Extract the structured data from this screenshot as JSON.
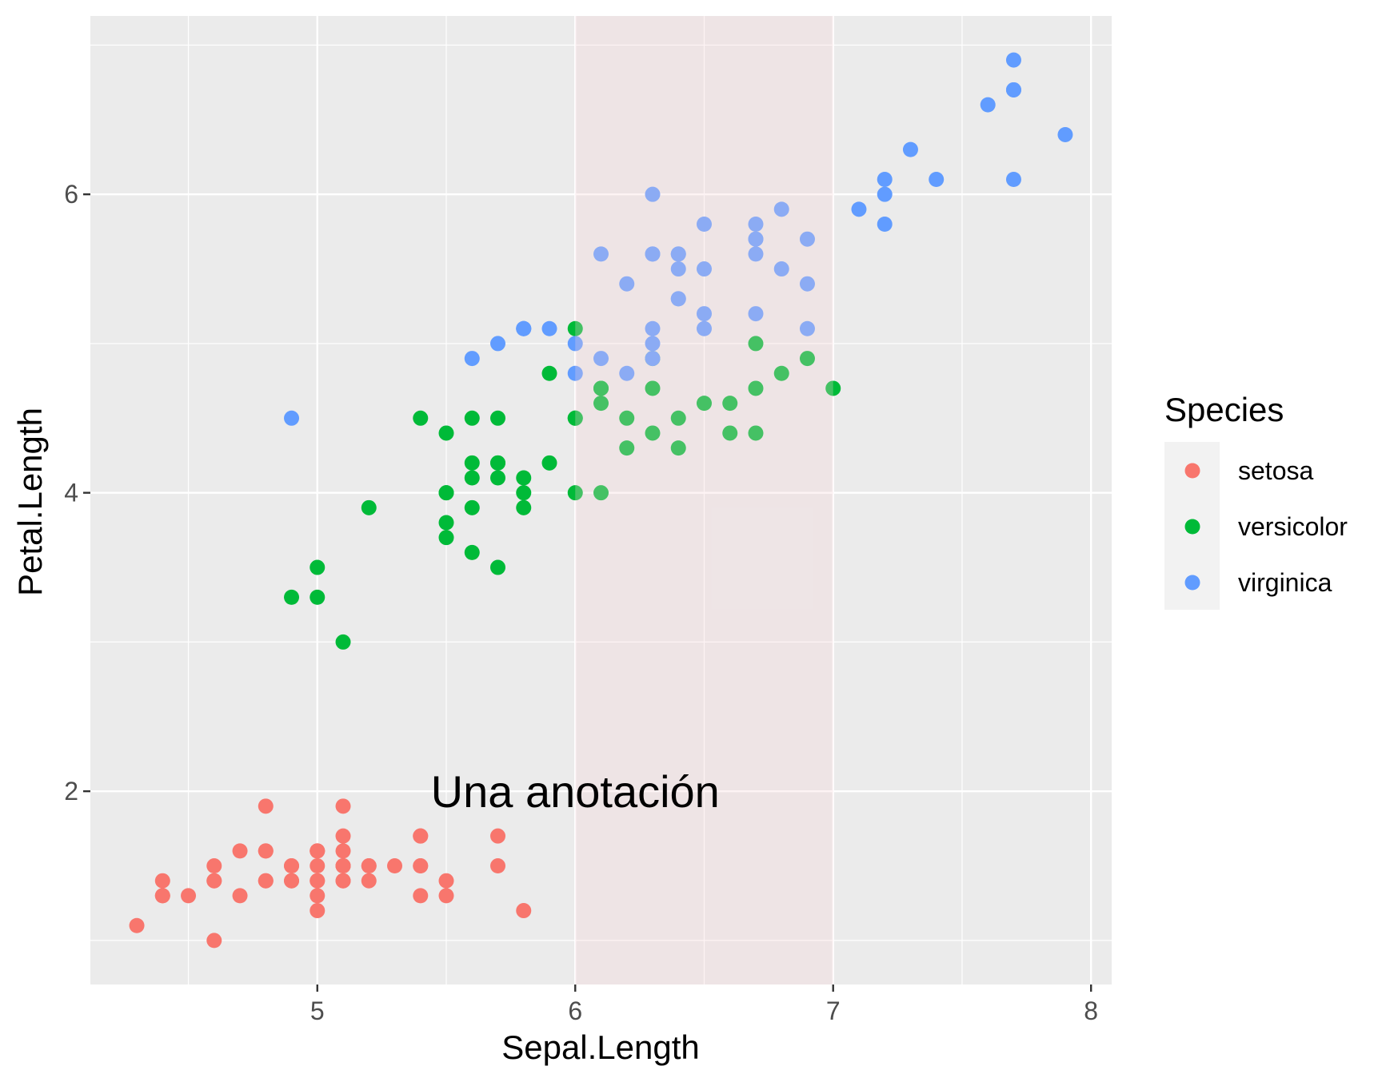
{
  "chart_data": {
    "type": "scatter",
    "xlabel": "Sepal.Length",
    "ylabel": "Petal.Length",
    "xlim": [
      4.12,
      8.08
    ],
    "ylim": [
      0.705,
      7.195
    ],
    "x_ticks": [
      5,
      6,
      7,
      8
    ],
    "y_ticks": [
      2,
      4,
      6
    ],
    "grid": true,
    "legend": {
      "title": "Species",
      "position": "right",
      "entries": [
        "setosa",
        "versicolor",
        "virginica"
      ]
    },
    "annotation": {
      "text": "Una anotación",
      "x": 6,
      "y": 2
    },
    "highlight_rect": {
      "xmin": 6,
      "xmax": 7,
      "color": "#f7d4d8"
    },
    "colors": {
      "setosa": "#F8766D",
      "versicolor": "#00BA38",
      "virginica": "#619CFF",
      "panel": "#EBEBEB",
      "grid": "#FFFFFF"
    },
    "series": [
      {
        "name": "setosa",
        "x": [
          5.1,
          4.9,
          4.7,
          4.6,
          5.0,
          5.4,
          4.6,
          5.0,
          4.4,
          4.9,
          5.4,
          4.8,
          4.8,
          4.3,
          5.8,
          5.7,
          5.4,
          5.1,
          5.7,
          5.1,
          5.4,
          5.1,
          4.6,
          5.1,
          4.8,
          5.0,
          5.0,
          5.2,
          5.2,
          4.7,
          4.8,
          5.4,
          5.2,
          5.5,
          4.9,
          5.0,
          5.5,
          4.9,
          4.4,
          5.1,
          5.0,
          4.5,
          4.4,
          5.0,
          5.1,
          4.8,
          5.1,
          4.6,
          5.3,
          5.0
        ],
        "y": [
          1.4,
          1.4,
          1.3,
          1.5,
          1.4,
          1.7,
          1.4,
          1.5,
          1.4,
          1.5,
          1.5,
          1.6,
          1.4,
          1.1,
          1.2,
          1.5,
          1.3,
          1.4,
          1.7,
          1.5,
          1.7,
          1.5,
          1.0,
          1.7,
          1.9,
          1.6,
          1.6,
          1.5,
          1.4,
          1.6,
          1.6,
          1.5,
          1.5,
          1.4,
          1.5,
          1.2,
          1.3,
          1.4,
          1.3,
          1.5,
          1.3,
          1.3,
          1.3,
          1.6,
          1.9,
          1.4,
          1.6,
          1.4,
          1.5,
          1.4
        ]
      },
      {
        "name": "versicolor",
        "x": [
          7.0,
          6.4,
          6.9,
          5.5,
          6.5,
          5.7,
          6.3,
          4.9,
          6.6,
          5.2,
          5.0,
          5.9,
          6.0,
          6.1,
          5.6,
          6.7,
          5.6,
          5.8,
          6.2,
          5.6,
          5.9,
          6.1,
          6.3,
          6.1,
          6.4,
          6.6,
          6.8,
          6.7,
          6.0,
          5.7,
          5.5,
          5.5,
          5.8,
          6.0,
          5.4,
          6.0,
          6.7,
          6.3,
          5.6,
          5.5,
          5.5,
          6.1,
          5.8,
          5.0,
          5.6,
          5.7,
          5.7,
          6.2,
          5.1,
          5.7
        ],
        "y": [
          4.7,
          4.5,
          4.9,
          4.0,
          4.6,
          4.5,
          4.7,
          3.3,
          4.6,
          3.9,
          3.5,
          4.2,
          4.0,
          4.7,
          3.6,
          4.4,
          4.5,
          4.1,
          4.5,
          3.9,
          4.8,
          4.0,
          4.9,
          4.7,
          4.3,
          4.4,
          4.8,
          5.0,
          4.5,
          3.5,
          3.8,
          3.7,
          3.9,
          5.1,
          4.5,
          4.5,
          4.7,
          4.4,
          4.1,
          4.0,
          4.4,
          4.6,
          4.0,
          3.3,
          4.2,
          4.2,
          4.2,
          4.3,
          3.0,
          4.1
        ]
      },
      {
        "name": "virginica",
        "x": [
          6.3,
          5.8,
          7.1,
          6.3,
          6.5,
          7.6,
          4.9,
          7.3,
          6.7,
          7.2,
          6.5,
          6.4,
          6.8,
          5.7,
          5.8,
          6.4,
          6.5,
          7.7,
          7.7,
          6.0,
          6.9,
          5.6,
          7.7,
          6.3,
          6.7,
          7.2,
          6.2,
          6.1,
          6.4,
          7.2,
          7.4,
          7.9,
          6.4,
          6.3,
          6.1,
          7.7,
          6.3,
          6.4,
          6.0,
          6.9,
          6.7,
          6.9,
          5.8,
          6.8,
          6.7,
          6.7,
          6.3,
          6.5,
          6.2,
          5.9
        ],
        "y": [
          6.0,
          5.1,
          5.9,
          5.6,
          5.8,
          6.6,
          4.5,
          6.3,
          5.8,
          6.1,
          5.1,
          5.3,
          5.5,
          5.0,
          5.1,
          5.3,
          5.5,
          6.7,
          6.9,
          5.0,
          5.7,
          4.9,
          6.7,
          4.9,
          5.7,
          6.0,
          4.8,
          4.9,
          5.6,
          5.8,
          6.1,
          6.4,
          5.6,
          5.1,
          5.6,
          6.1,
          5.6,
          5.5,
          4.8,
          5.4,
          5.6,
          5.1,
          5.1,
          5.9,
          5.7,
          5.2,
          5.0,
          5.2,
          5.4,
          5.1
        ]
      }
    ]
  }
}
